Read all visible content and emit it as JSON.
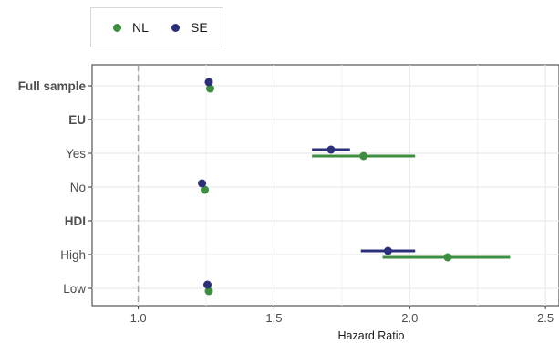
{
  "chart_data": {
    "type": "forest",
    "xlabel": "Hazard Ratio",
    "xlim": [
      0.83,
      2.55
    ],
    "x_ticks": [
      1.0,
      1.5,
      2.0,
      2.5
    ],
    "x_tick_labels": [
      "1.0",
      "1.5",
      "2.0",
      "2.5"
    ],
    "reference_line": 1.0,
    "grid": true,
    "legend_position": "top-left",
    "rows": [
      {
        "label": "Full sample",
        "bold": true
      },
      {
        "label": "EU",
        "bold": true
      },
      {
        "label": "Yes",
        "bold": false
      },
      {
        "label": "No",
        "bold": false
      },
      {
        "label": "HDI",
        "bold": true
      },
      {
        "label": "High",
        "bold": false
      },
      {
        "label": "Low",
        "bold": false
      }
    ],
    "series": [
      {
        "name": "NL",
        "color": "#3e8e41",
        "points": [
          {
            "row": "Full sample",
            "estimate": 1.265,
            "lower": 1.255,
            "upper": 1.275
          },
          {
            "row": "Yes",
            "estimate": 1.83,
            "lower": 1.64,
            "upper": 2.02
          },
          {
            "row": "No",
            "estimate": 1.245,
            "lower": 1.235,
            "upper": 1.255
          },
          {
            "row": "High",
            "estimate": 2.14,
            "lower": 1.9,
            "upper": 2.37
          },
          {
            "row": "Low",
            "estimate": 1.26,
            "lower": 1.25,
            "upper": 1.27
          }
        ]
      },
      {
        "name": "SE",
        "color": "#2b2f7a",
        "points": [
          {
            "row": "Full sample",
            "estimate": 1.26,
            "lower": 1.25,
            "upper": 1.27
          },
          {
            "row": "Yes",
            "estimate": 1.71,
            "lower": 1.64,
            "upper": 1.78
          },
          {
            "row": "No",
            "estimate": 1.235,
            "lower": 1.225,
            "upper": 1.245
          },
          {
            "row": "High",
            "estimate": 1.92,
            "lower": 1.82,
            "upper": 2.02
          },
          {
            "row": "Low",
            "estimate": 1.255,
            "lower": 1.245,
            "upper": 1.265
          }
        ]
      }
    ]
  }
}
